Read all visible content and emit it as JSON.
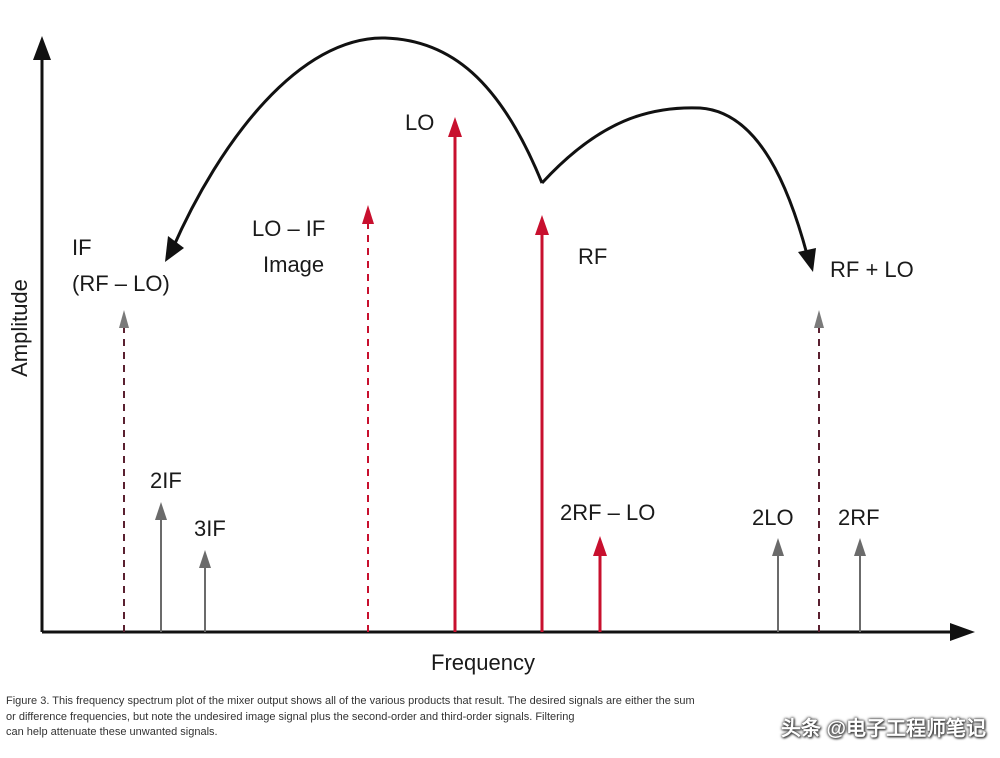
{
  "figure": {
    "y_axis_label": "Amplitude",
    "x_axis_label": "Frequency"
  },
  "labels": {
    "if_line1": "IF",
    "if_line2": "(RF – LO)",
    "image_line1": "LO – IF",
    "image_line2": "Image",
    "lo": "LO",
    "rf": "RF",
    "rf_plus_lo": "RF + LO",
    "two_if": "2IF",
    "three_if": "3IF",
    "two_rf_minus_lo": "2RF – LO",
    "two_lo": "2LO",
    "two_rf": "2RF"
  },
  "colors": {
    "red": "#c8102e",
    "gray": "#6b6b6b",
    "dashed_dark": "#5a2030",
    "axis": "#111111"
  },
  "caption": {
    "line1": "Figure 3. This frequency spectrum plot of the mixer output shows all of the various products that result. The desired signals are either the sum",
    "line2": "or difference frequencies, but note the undesired image signal plus the second-order and third-order signals. Filtering",
    "line3": "can help attenuate these unwanted signals."
  },
  "watermark": "头条 @电子工程师笔记"
}
